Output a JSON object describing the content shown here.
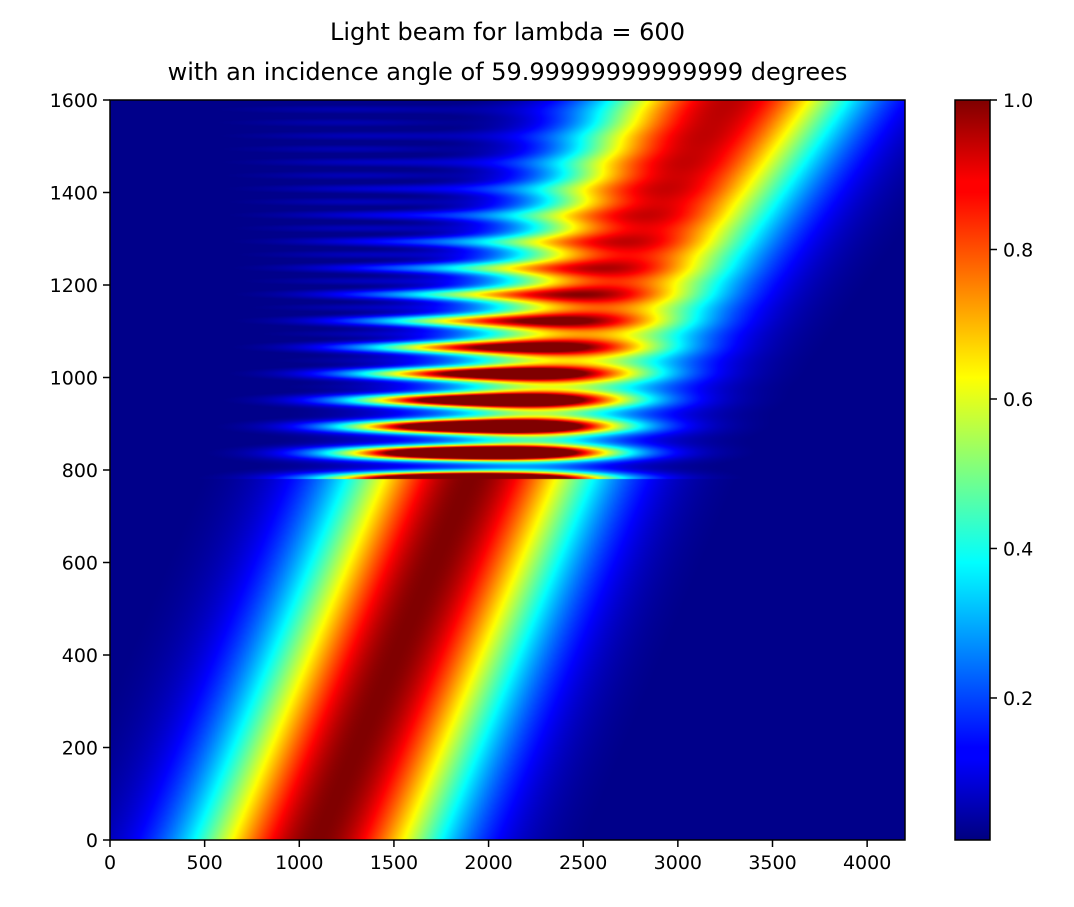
{
  "chart_data": {
    "type": "heatmap",
    "title_line1": "Light beam for lambda = 600",
    "title_line2": "with an incidence angle of 59.99999999999999 degrees",
    "xlabel": "",
    "ylabel": "",
    "xlim": [
      0,
      4200
    ],
    "ylim": [
      0,
      1600
    ],
    "x_ticks": [
      0,
      500,
      1000,
      1500,
      2000,
      2500,
      3000,
      3500,
      4000
    ],
    "y_ticks": [
      0,
      200,
      400,
      600,
      800,
      1000,
      1200,
      1400,
      1600
    ],
    "colormap": "jet",
    "colorbar": {
      "range": [
        0.01,
        1.0
      ],
      "ticks": [
        "0.2",
        "0.4",
        "0.6",
        "0.8",
        "1.0"
      ],
      "tick_values": [
        0.2,
        0.4,
        0.6,
        0.8,
        1.0
      ]
    },
    "beam": {
      "interface_y": 780,
      "center_at_y0": 1100,
      "center_at_y780": 1900,
      "center_at_y1600": 3270,
      "width": 1400,
      "interference_region_y": [
        780,
        1600
      ],
      "peak_region_center": [
        2250,
        880
      ]
    },
    "grid": false
  }
}
